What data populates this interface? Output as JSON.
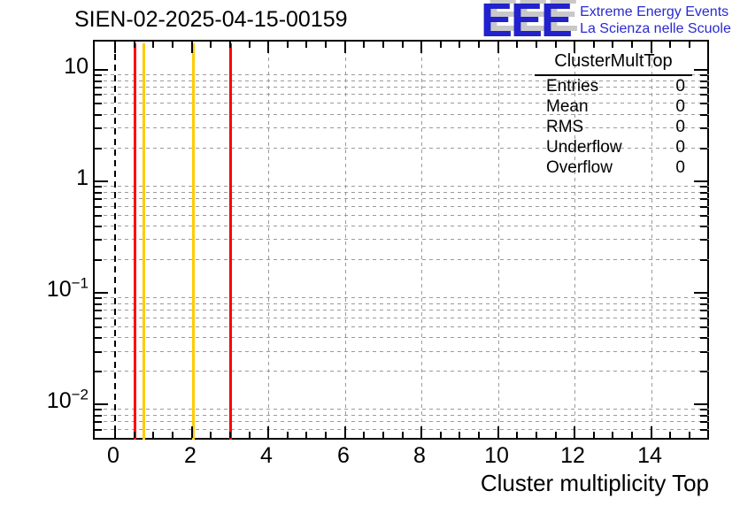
{
  "title": "SIEN-02-2025-04-15-00159",
  "logo": {
    "eee": "EEE",
    "line1": "Extreme Energy Events",
    "line2": "La Scienza nelle Scuole",
    "blue": "#2121cd",
    "shadow": "#c8c8c8"
  },
  "stats": {
    "title": "ClusterMultTop",
    "rows": [
      {
        "label": "Entries",
        "value": "0"
      },
      {
        "label": "Mean",
        "value": "0"
      },
      {
        "label": "RMS",
        "value": "0"
      },
      {
        "label": "Underflow",
        "value": "0"
      },
      {
        "label": "Overflow",
        "value": "0"
      }
    ]
  },
  "axes": {
    "xlabel": "Cluster multiplicity Top"
  },
  "chart_data": {
    "type": "bar",
    "title": "SIEN-02-2025-04-15-00159",
    "xlabel": "Cluster multiplicity Top",
    "ylabel": "",
    "histogram_name": "ClusterMultTop",
    "entries": 0,
    "mean": 0,
    "rms": 0,
    "underflow": 0,
    "overflow": 0,
    "bins": 16,
    "values": [
      0,
      0,
      0,
      0,
      0,
      0,
      0,
      0,
      0,
      0,
      0,
      0,
      0,
      0,
      0,
      0
    ],
    "x_range": [
      -0.5,
      15.5
    ],
    "y_range": [
      0.00483,
      17.3
    ],
    "log_y": true,
    "grid": true,
    "grid_color": "#9a9a9a",
    "x_major_ticks": [
      0,
      2,
      4,
      6,
      8,
      10,
      12,
      14
    ],
    "x_minor_step": 0.5,
    "y_major_ticks": [
      10,
      1,
      0.1,
      0.01
    ],
    "y_tick_labels": [
      {
        "v": 10,
        "base": "10",
        "exp": ""
      },
      {
        "v": 1,
        "base": "1",
        "exp": ""
      },
      {
        "v": 0.1,
        "base": "10",
        "exp": "−1"
      },
      {
        "v": 0.01,
        "base": "10",
        "exp": "−2"
      }
    ],
    "marker_lines": [
      {
        "x": 0,
        "color": "#000000",
        "style": "dashed",
        "name": "zero-dashed-line"
      },
      {
        "x": 0.5,
        "color": "#ff0000",
        "style": "solid",
        "name": "red-threshold-low"
      },
      {
        "x": 0.73,
        "color": "#ffcc00",
        "style": "solid",
        "name": "yellow-threshold-low"
      },
      {
        "x": 2.03,
        "color": "#ffcc00",
        "style": "solid",
        "name": "yellow-threshold-high"
      },
      {
        "x": 3.0,
        "color": "#ff0000",
        "style": "solid",
        "name": "red-threshold-high"
      }
    ]
  }
}
